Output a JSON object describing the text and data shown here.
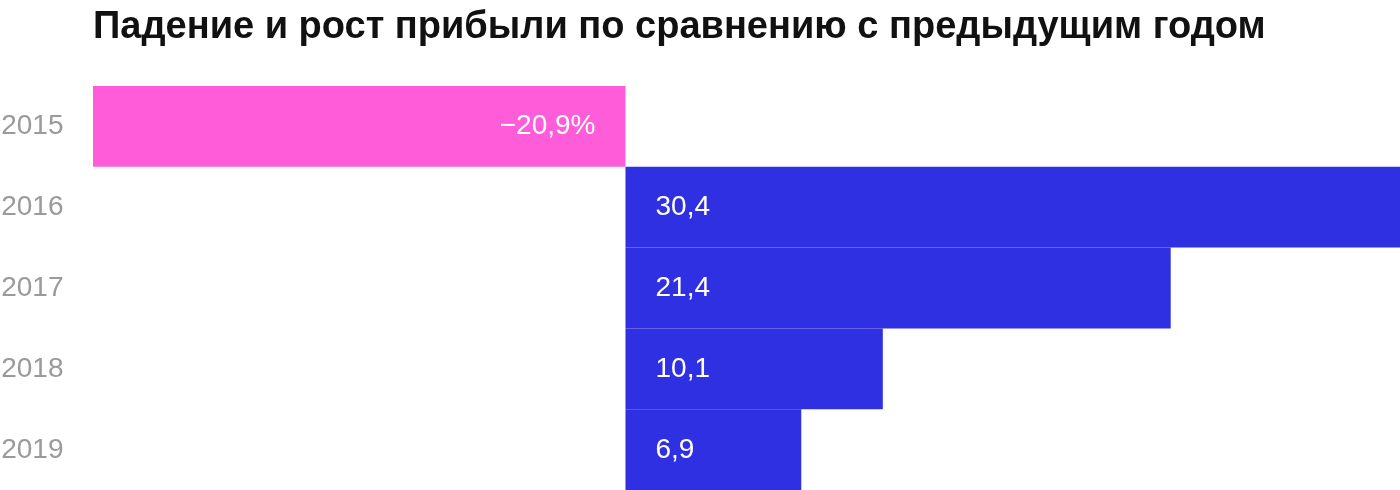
{
  "chart_data": {
    "type": "bar",
    "orientation": "horizontal",
    "title": "Падение и рост прибыли по сравнению с предыдущим годом",
    "categories": [
      "2015",
      "2016",
      "2017",
      "2018",
      "2019"
    ],
    "values": [
      -20.9,
      30.4,
      21.4,
      10.1,
      6.9
    ],
    "colors": [
      "#ff5cd9",
      "#3030e3",
      "#3030e3",
      "#3030e3",
      "#3030e3"
    ],
    "value_labels": [
      "−20,9%",
      "30,4",
      "21,4",
      "10,1",
      "6,9"
    ],
    "grid": false,
    "tick_labels": "y"
  }
}
